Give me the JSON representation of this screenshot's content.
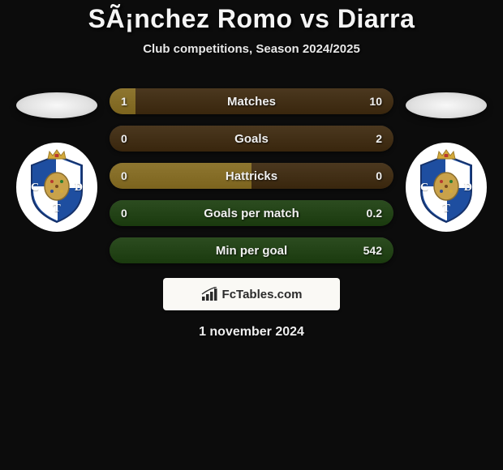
{
  "header": {
    "title": "SÃ¡nchez Romo vs Diarra",
    "subtitle": "Club competitions, Season 2024/2025"
  },
  "club_badge": {
    "shield_blue": "#1e4ea0",
    "shield_white": "#ffffff",
    "crown_gold": "#d4a93a",
    "crown_red": "#b8392e",
    "center_ochre": "#c9a24a",
    "letter_c": "C",
    "letter_d": "D",
    "letter_t": "T"
  },
  "stats": [
    {
      "label": "Matches",
      "left_val": "1",
      "right_val": "10",
      "left_ratio": 0.09,
      "right_ratio": 0.91,
      "left_color": "#7c641e",
      "right_color": "#39260d"
    },
    {
      "label": "Goals",
      "left_val": "0",
      "right_val": "2",
      "left_ratio": 0.0,
      "right_ratio": 1.0,
      "left_color": "#7c641e",
      "right_color": "#39260d"
    },
    {
      "label": "Hattricks",
      "left_val": "0",
      "right_val": "0",
      "left_ratio": 0.5,
      "right_ratio": 0.5,
      "left_color": "#7c641e",
      "right_color": "#39260d"
    },
    {
      "label": "Goals per match",
      "left_val": "0",
      "right_val": "0.2",
      "left_ratio": 0.0,
      "right_ratio": 1.0,
      "left_color": "#2e5517",
      "right_color": "#1a3a0e"
    },
    {
      "label": "Min per goal",
      "left_val": "",
      "right_val": "542",
      "left_ratio": 0.0,
      "right_ratio": 1.0,
      "left_color": "#2e5517",
      "right_color": "#1a3a0e"
    }
  ],
  "brand": {
    "text": "FcTables.com",
    "icon_color": "#2b2b2b"
  },
  "footer": {
    "date": "1 november 2024"
  }
}
